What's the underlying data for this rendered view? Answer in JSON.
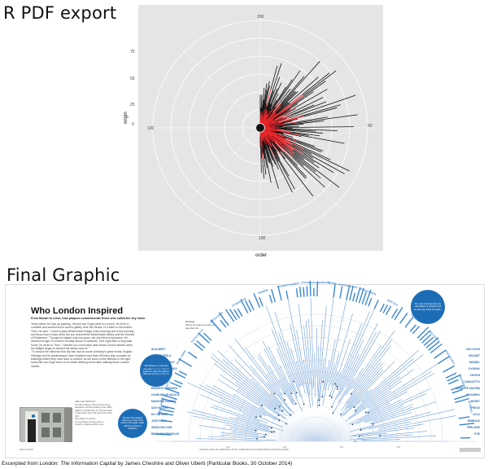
{
  "headings": {
    "r_pdf_export": "R PDF export",
    "final_graphic": "Final Graphic"
  },
  "chart_data": {
    "type": "polar",
    "xlabel": "order",
    "ylabel": "origin",
    "y_ticks": [
      "0",
      "25",
      "50",
      "75"
    ],
    "angle_ticks": [
      "200",
      "50",
      "100",
      "100"
    ],
    "colors": {
      "panel": "#e5e5e5",
      "grid": "#ffffff",
      "bars_black": "#111111",
      "bars_red": "#e8262b"
    }
  },
  "final_graphic": {
    "title": "Who London Inspired",
    "subtitle": "From Mozart to Lenin, blue plaques commemorate those who called the city home.",
    "body": "Years before he took up painting, Vincent van Gogh came to London. He lived in Lambeth and worked at his uncle's gallery near the Strand. In a letter to his brother Theo, he said, \"I used to pass Westminster Bridge every morning and every evening and know how it looks when the sun sets behind Westminster Abbey and the Houses of Parliament.\" Though he stayed only two years, the city left an impression. He returned at age 23 to teach Sunday school in Isleworth. One night after a long walk home, he wrote to Theo: \"I wished you could have seen those London streets when the twilight began to fall and the lamps were lit.\"\n\"To honour the influence this city has had on some of history's great minds, English Heritage and its predecessors have installed more than 900 blue clay roundels on buildings where they once lived or worked. As we show on the lifelines in the right, many like van Gogh went on to create defining works after walking those London streets.",
    "photo_caption": "ARE THEY BRITISH?\nThe Blue Plaques Panel knows about\ndeceased commemorations since 1866,\neligible, provided they be 20 years dead\nor have been born 100 years since their\nbirth.\nSee plaque to London\nFor population it nearly all be a\nminority of plaque-worthy ones.",
    "footer_left": "■ BLUE BAND",
    "footer_center": "SOURCE: ENGLISH HERITAGE. NOTE: COMPILED DATA FROM OFFICIAL BLUE PLAQUES",
    "bubbles": {
      "left": "Van Rossum: no German ever been of Lenin's British residence, when he visited in 1902 and his stay in this city.",
      "top_right": "The city's red lines show the nationalities of residents and the rate they came to London.",
      "lower_left": "The four blue plaques shown on a map in the centre of the page. Cities, with the number of residents."
    },
    "legend": [
      "Birthplace",
      "Person is London is a point / city",
      "Age when the ..."
    ],
    "lifeline_labels_left": [
      "ADALBERT",
      "NIKOLAI TESLA",
      "WILHELM GUSTAV",
      "FYODOR TYUTCHEV",
      "VLADIMIR LENIN",
      "KARL MARX",
      "ERNESTO GUEVARA",
      "CHARLES DE GAULLE",
      "MAHATMA GANDHI",
      "SUN YAT-SEN",
      "HO CHI MINH",
      "JOSE RIZAL",
      "SIMON BOLIVAR",
      "BENJAMIN FRANKLIN"
    ],
    "lifeline_labels_right": [
      "VAN GOGH",
      "MOZART",
      "HANDEL",
      "DVORAK",
      "CHOPIN",
      "CANALETTO",
      "GIUSEPPE MAZZINI",
      "PISSARRO",
      "MONET",
      "FREUD",
      "ZOLA",
      "RIMBAUD",
      "VERLAINE",
      "POE"
    ],
    "top_labels": [
      "HENRY JAMES",
      "T. S. ELIOT",
      "MARK TWAIN",
      "SYLVIA PLATH",
      "EZRA POUND",
      "BOB MARLEY",
      "HENDRIX",
      "JOSEPH CONRAD",
      "KATHERINE MANSFIELD",
      "RABINDRANATH TAGORE",
      "NAPOLEON III",
      "VOLTAIRE",
      "RIMSKY",
      "LOUIS XVIII",
      "KOKOSCHKA",
      "MARCONI",
      "GRIMALDI"
    ],
    "axis_ticks": [
      "150",
      "200",
      "250",
      "300"
    ]
  },
  "credit": {
    "prefix": "Excerpted from ",
    "book": "London: The Information Capital",
    "suffix": " by James Cheshire and Oliver Uberti (Particular Books, 30 October 2014)"
  }
}
